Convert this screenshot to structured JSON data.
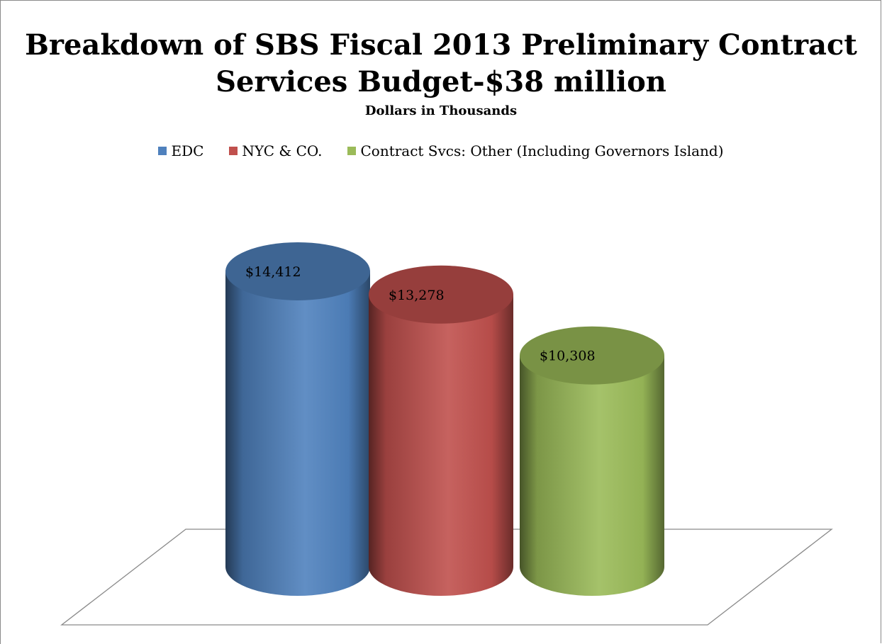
{
  "chart_data": {
    "type": "bar",
    "title": "Breakdown of SBS Fiscal 2013 Preliminary Contract Services Budget-$38 million",
    "subtitle": "Dollars in Thousands",
    "categories": [
      "EDC",
      "NYC & CO.",
      "Contract Svcs: Other (Including Governors Island)"
    ],
    "values": [
      14412,
      13278,
      10308
    ],
    "data_labels": [
      "$14,412",
      "$13,278",
      "$10,308"
    ],
    "colors": [
      "#4f81bd",
      "#c0504d",
      "#9bbb59"
    ],
    "legend_position": "top",
    "bar_shape": "3d-cylinder",
    "grid": false
  }
}
